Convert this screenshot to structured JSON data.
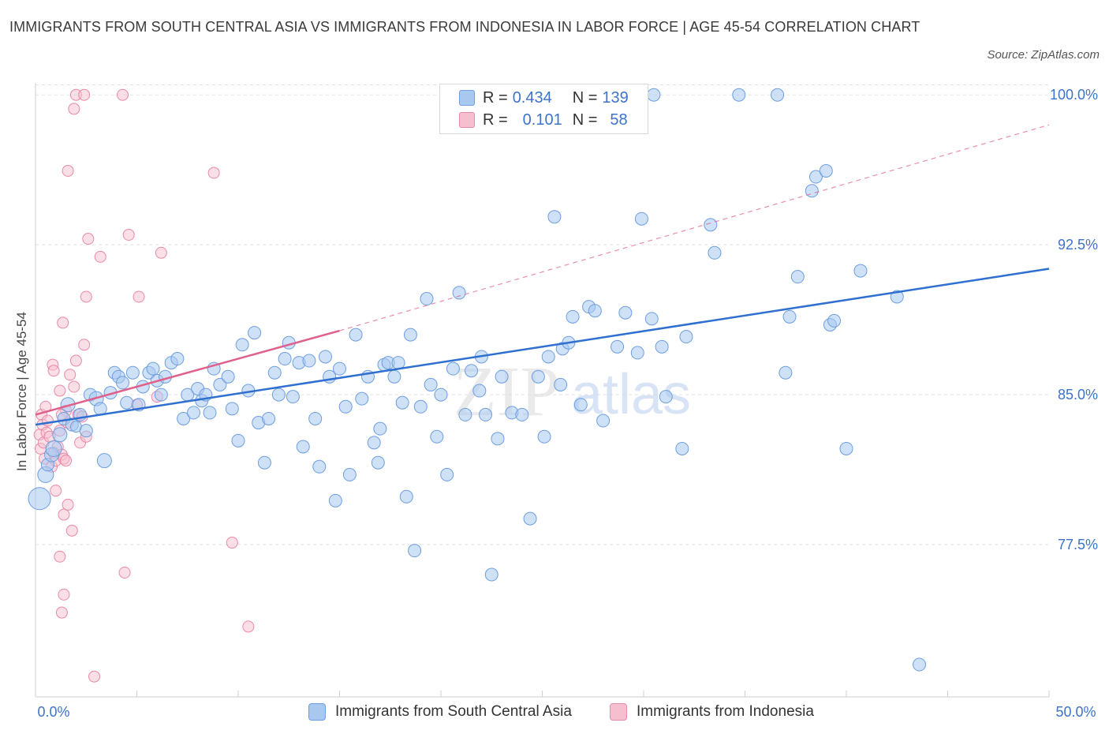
{
  "title": "IMMIGRANTS FROM SOUTH CENTRAL ASIA VS IMMIGRANTS FROM INDONESIA IN LABOR FORCE | AGE 45-54 CORRELATION CHART",
  "source": "Source: ZipAtlas.com",
  "watermark": {
    "zip": "ZIP",
    "atlas": "atlas"
  },
  "legend": {
    "rows": [
      {
        "r_label": "R =",
        "r_value": "0.434",
        "n_label": "N =",
        "n_value": "139"
      },
      {
        "r_label": "R =",
        "r_value": "0.101",
        "n_label": "N =",
        "n_value": "58"
      }
    ]
  },
  "bottom_legend": [
    "Immigrants from South Central Asia",
    "Immigrants from Indonesia"
  ],
  "chart_data": {
    "type": "scatter",
    "ylabel": "In Labor Force | Age 45-54",
    "xlabel": "",
    "xlim": [
      0,
      50
    ],
    "ylim": [
      70.0,
      100.6
    ],
    "x_tick_labels": [
      "0.0%",
      "50.0%"
    ],
    "y_ticks": [
      77.5,
      85.0,
      92.5,
      100.0
    ],
    "y_tick_labels": [
      "77.5%",
      "85.0%",
      "92.5%",
      "100.0%"
    ],
    "grid": true,
    "colors": {
      "blue_fill": "#a8c8f0",
      "blue_stroke": "#6d9ee0",
      "blue_line": "#2f6fd0",
      "pink_fill": "#f6bfd0",
      "pink_stroke": "#e98aa8",
      "pink_line": "#e0608c",
      "axis_text": "#3d73c9"
    },
    "series": [
      {
        "name": "Immigrants from South Central Asia",
        "trend": {
          "x0": 0,
          "y0": 83.5,
          "x1": 50,
          "y1": 91.3,
          "style": "solid"
        },
        "points": [
          [
            0.2,
            79.8,
            14
          ],
          [
            0.5,
            81.0,
            10
          ],
          [
            0.6,
            81.5,
            8
          ],
          [
            0.8,
            82.0,
            9
          ],
          [
            0.9,
            82.3,
            10
          ],
          [
            1.2,
            83.0,
            9
          ],
          [
            1.4,
            83.8,
            8
          ],
          [
            1.6,
            84.5,
            9
          ],
          [
            1.8,
            83.5,
            8
          ],
          [
            2.0,
            83.4,
            7
          ],
          [
            2.2,
            84.0,
            8
          ],
          [
            2.5,
            83.2,
            8
          ],
          [
            2.7,
            85.0,
            8
          ],
          [
            3.0,
            84.8,
            9
          ],
          [
            3.2,
            84.3,
            8
          ],
          [
            3.4,
            81.7,
            9
          ],
          [
            3.7,
            85.1,
            8
          ],
          [
            3.9,
            86.1,
            8
          ],
          [
            4.1,
            85.9,
            8
          ],
          [
            4.3,
            85.6,
            8
          ],
          [
            4.5,
            84.6,
            8
          ],
          [
            4.8,
            86.1,
            8
          ],
          [
            5.1,
            84.5,
            8
          ],
          [
            5.3,
            85.4,
            8
          ],
          [
            5.6,
            86.1,
            8
          ],
          [
            5.8,
            86.3,
            8
          ],
          [
            6.0,
            85.7,
            8
          ],
          [
            6.2,
            85.0,
            8
          ],
          [
            6.4,
            85.9,
            8
          ],
          [
            6.7,
            86.6,
            8
          ],
          [
            7.0,
            86.8,
            8
          ],
          [
            7.3,
            83.8,
            8
          ],
          [
            7.5,
            85.0,
            8
          ],
          [
            7.8,
            84.1,
            8
          ],
          [
            8.0,
            85.3,
            8
          ],
          [
            8.2,
            84.7,
            8
          ],
          [
            8.4,
            85.0,
            8
          ],
          [
            8.6,
            84.1,
            8
          ],
          [
            8.8,
            86.3,
            8
          ],
          [
            9.1,
            85.5,
            8
          ],
          [
            9.5,
            85.9,
            8
          ],
          [
            9.7,
            84.3,
            8
          ],
          [
            10.0,
            82.7,
            8
          ],
          [
            10.2,
            87.5,
            8
          ],
          [
            10.5,
            85.2,
            8
          ],
          [
            10.8,
            88.1,
            8
          ],
          [
            11.0,
            83.6,
            8
          ],
          [
            11.3,
            81.6,
            8
          ],
          [
            11.5,
            83.8,
            8
          ],
          [
            11.8,
            86.1,
            8
          ],
          [
            12.0,
            85.0,
            8
          ],
          [
            12.3,
            86.8,
            8
          ],
          [
            12.5,
            87.6,
            8
          ],
          [
            12.7,
            84.9,
            8
          ],
          [
            13.0,
            86.6,
            8
          ],
          [
            13.2,
            82.4,
            8
          ],
          [
            13.5,
            86.7,
            8
          ],
          [
            13.8,
            83.8,
            8
          ],
          [
            14.0,
            81.4,
            8
          ],
          [
            14.3,
            86.9,
            8
          ],
          [
            14.5,
            85.9,
            8
          ],
          [
            14.8,
            79.7,
            8
          ],
          [
            15.0,
            86.3,
            8
          ],
          [
            15.3,
            84.4,
            8
          ],
          [
            15.5,
            81.0,
            8
          ],
          [
            15.8,
            88.0,
            8
          ],
          [
            16.1,
            84.8,
            8
          ],
          [
            16.4,
            85.9,
            8
          ],
          [
            16.7,
            82.6,
            8
          ],
          [
            16.9,
            81.6,
            8
          ],
          [
            17.0,
            83.3,
            8
          ],
          [
            17.2,
            86.5,
            8
          ],
          [
            17.4,
            86.6,
            8
          ],
          [
            17.7,
            85.9,
            8
          ],
          [
            17.9,
            86.6,
            8
          ],
          [
            18.1,
            84.6,
            8
          ],
          [
            18.3,
            79.9,
            8
          ],
          [
            18.5,
            88.0,
            8
          ],
          [
            18.7,
            77.2,
            8
          ],
          [
            19.0,
            84.4,
            8
          ],
          [
            19.3,
            89.8,
            8
          ],
          [
            19.5,
            85.5,
            8
          ],
          [
            19.8,
            82.9,
            8
          ],
          [
            20.0,
            85.0,
            8
          ],
          [
            20.3,
            81.0,
            8
          ],
          [
            20.6,
            86.3,
            8
          ],
          [
            20.9,
            90.1,
            8
          ],
          [
            21.2,
            84.0,
            8
          ],
          [
            21.5,
            86.2,
            8
          ],
          [
            21.9,
            85.2,
            8
          ],
          [
            22.0,
            86.9,
            8
          ],
          [
            22.2,
            84.0,
            8
          ],
          [
            22.5,
            76.0,
            8
          ],
          [
            22.8,
            82.8,
            8
          ],
          [
            23.0,
            85.9,
            8
          ],
          [
            23.5,
            84.1,
            8
          ],
          [
            24.0,
            84.0,
            8
          ],
          [
            24.4,
            78.8,
            8
          ],
          [
            24.8,
            85.9,
            8
          ],
          [
            25.1,
            82.9,
            8
          ],
          [
            25.3,
            86.9,
            8
          ],
          [
            25.6,
            93.9,
            8
          ],
          [
            25.9,
            85.5,
            8
          ],
          [
            26.0,
            87.3,
            8
          ],
          [
            26.3,
            87.6,
            8
          ],
          [
            26.5,
            88.9,
            8
          ],
          [
            26.9,
            84.5,
            8
          ],
          [
            27.3,
            89.4,
            8
          ],
          [
            27.6,
            89.2,
            8
          ],
          [
            28.0,
            83.7,
            8
          ],
          [
            28.7,
            87.4,
            8
          ],
          [
            29.1,
            89.1,
            8
          ],
          [
            29.7,
            87.1,
            8
          ],
          [
            29.9,
            93.8,
            8
          ],
          [
            30.4,
            88.8,
            8
          ],
          [
            30.5,
            100.0,
            8
          ],
          [
            30.9,
            87.4,
            8
          ],
          [
            31.1,
            84.9,
            8
          ],
          [
            31.9,
            82.3,
            8
          ],
          [
            32.1,
            87.9,
            8
          ],
          [
            33.3,
            93.5,
            8
          ],
          [
            33.5,
            92.1,
            8
          ],
          [
            34.7,
            100.0,
            8
          ],
          [
            36.6,
            100.0,
            8
          ],
          [
            37.0,
            86.1,
            8
          ],
          [
            37.2,
            88.9,
            8
          ],
          [
            37.6,
            90.9,
            8
          ],
          [
            38.3,
            95.2,
            8
          ],
          [
            38.5,
            95.9,
            8
          ],
          [
            39.0,
            96.2,
            8
          ],
          [
            39.2,
            88.5,
            8
          ],
          [
            39.4,
            88.7,
            8
          ],
          [
            40.0,
            82.3,
            8
          ],
          [
            40.7,
            91.2,
            8
          ],
          [
            42.5,
            89.9,
            8
          ],
          [
            43.6,
            71.5,
            8
          ]
        ]
      },
      {
        "name": "Immigrants from Indonesia",
        "trend": {
          "x0": 0,
          "y0": 84.0,
          "x1": 15.0,
          "y1": 88.2,
          "style": "solid",
          "ext_x1": 50,
          "ext_y1": 98.5
        },
        "points": [
          [
            0.2,
            83.0,
            7
          ],
          [
            0.25,
            82.3,
            7
          ],
          [
            0.3,
            84.0,
            7
          ],
          [
            0.35,
            83.5,
            7
          ],
          [
            0.4,
            82.6,
            7
          ],
          [
            0.45,
            81.8,
            7
          ],
          [
            0.5,
            84.4,
            7
          ],
          [
            0.55,
            83.1,
            7
          ],
          [
            0.6,
            83.7,
            7
          ],
          [
            0.7,
            82.9,
            7
          ],
          [
            0.8,
            81.4,
            7
          ],
          [
            0.9,
            82.1,
            7
          ],
          [
            1.0,
            81.7,
            7
          ],
          [
            1.1,
            82.4,
            7
          ],
          [
            1.2,
            83.2,
            7
          ],
          [
            1.3,
            82.0,
            7
          ],
          [
            1.4,
            81.8,
            7
          ],
          [
            1.5,
            84.2,
            7
          ],
          [
            1.6,
            83.6,
            7
          ],
          [
            0.85,
            86.5,
            7
          ],
          [
            0.9,
            86.2,
            7
          ],
          [
            1.0,
            80.2,
            7
          ],
          [
            1.2,
            85.2,
            7
          ],
          [
            1.3,
            84.0,
            7
          ],
          [
            1.35,
            88.6,
            7
          ],
          [
            1.4,
            79.0,
            7
          ],
          [
            1.5,
            81.7,
            7
          ],
          [
            1.6,
            79.5,
            7
          ],
          [
            1.7,
            86.0,
            7
          ],
          [
            1.8,
            78.2,
            7
          ],
          [
            1.9,
            85.4,
            7
          ],
          [
            2.0,
            86.7,
            7
          ],
          [
            2.1,
            84.0,
            7
          ],
          [
            2.2,
            82.6,
            7
          ],
          [
            2.3,
            83.9,
            7
          ],
          [
            2.4,
            87.5,
            7
          ],
          [
            2.5,
            82.9,
            7
          ],
          [
            1.2,
            76.9,
            7
          ],
          [
            1.4,
            75.0,
            7
          ],
          [
            1.3,
            74.1,
            7
          ],
          [
            1.6,
            96.2,
            7
          ],
          [
            1.9,
            99.3,
            7
          ],
          [
            2.0,
            100.0,
            7
          ],
          [
            2.4,
            100.0,
            7
          ],
          [
            2.6,
            92.8,
            7
          ],
          [
            2.5,
            89.9,
            7
          ],
          [
            3.2,
            91.9,
            7
          ],
          [
            2.9,
            70.9,
            7
          ],
          [
            4.3,
            100.0,
            7
          ],
          [
            4.6,
            93.0,
            7
          ],
          [
            5.1,
            89.9,
            7
          ],
          [
            6.2,
            92.1,
            7
          ],
          [
            4.4,
            76.1,
            7
          ],
          [
            8.8,
            96.1,
            7
          ],
          [
            9.7,
            77.6,
            7
          ],
          [
            10.5,
            73.4,
            7
          ],
          [
            5.0,
            84.5,
            7
          ],
          [
            6.0,
            84.9,
            7
          ]
        ]
      }
    ]
  }
}
